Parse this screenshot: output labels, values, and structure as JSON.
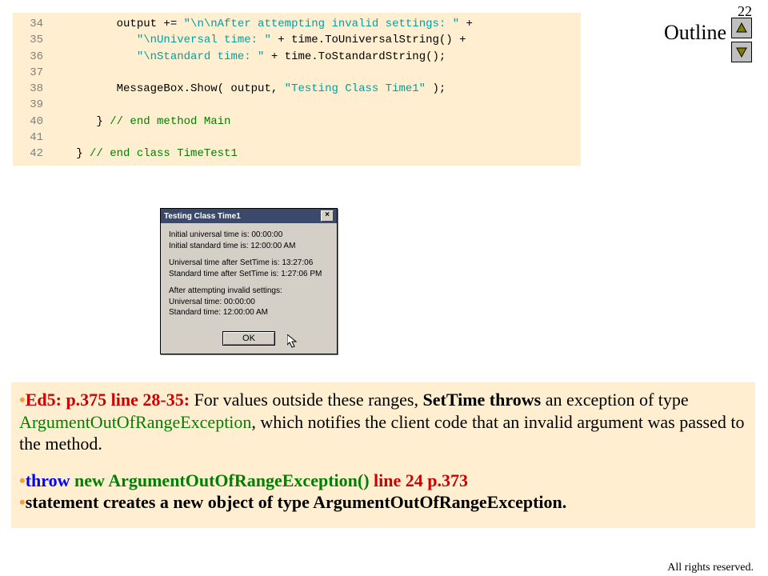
{
  "page_number": "22",
  "outline_label": "Outline",
  "code": {
    "lines": [
      {
        "n": "34",
        "pre": "         output += ",
        "str": "\"\\n\\nAfter attempting invalid settings: \"",
        "post": " +"
      },
      {
        "n": "35",
        "pre": "            ",
        "str": "\"\\nUniversal time: \"",
        "post": " + time.ToUniversalString() +"
      },
      {
        "n": "36",
        "pre": "            ",
        "str": "\"\\nStandard time: \"",
        "post": " + time.ToStandardString();"
      },
      {
        "n": "37",
        "pre": "",
        "str": "",
        "post": ""
      },
      {
        "n": "38",
        "pre": "         MessageBox.Show( output, ",
        "str": "\"Testing Class Time1\"",
        "post": " );"
      },
      {
        "n": "39",
        "pre": "",
        "str": "",
        "post": ""
      },
      {
        "n": "40",
        "pre": "      } ",
        "str": "",
        "post": "",
        "comment": "// end method Main"
      },
      {
        "n": "41",
        "pre": "",
        "str": "",
        "post": ""
      },
      {
        "n": "42",
        "pre": "   } ",
        "str": "",
        "post": "",
        "comment": "// end class TimeTest1"
      }
    ]
  },
  "dialog": {
    "title": "Testing Class Time1",
    "close_glyph": "×",
    "body": {
      "p1a": "Initial universal time is: 00:00:00",
      "p1b": "Initial standard time is: 12:00:00 AM",
      "p2a": "Universal time after SetTime is: 13:27:06",
      "p2b": "Standard time after SetTime is: 1:27:06 PM",
      "p3a": "After attempting invalid settings:",
      "p3b": "Universal time: 00:00:00",
      "p3c": "Standard time: 12:00:00 AM"
    },
    "ok_label": "OK"
  },
  "notes": {
    "b1_lead": "Ed5: p.375 line 28-35: ",
    "b1_mid_a": "For values outside these ranges, ",
    "b1_bold_a": "SetTime throws",
    "b1_mid_b": " an exception of type ",
    "b1_green": "ArgumentOutOfRangeException",
    "b1_mid_c": ", which notifies the client code that an invalid argument was passed to the method.",
    "b2_blue": "throw",
    "b2_green_a": " new ",
    "b2_green_b": "ArgumentOutOfRangeException() ",
    "b2_red_tail": "line 24 p.373",
    "b3": "statement creates a new object of type ArgumentOutOfRangeException."
  },
  "copyright": "All rights reserved."
}
